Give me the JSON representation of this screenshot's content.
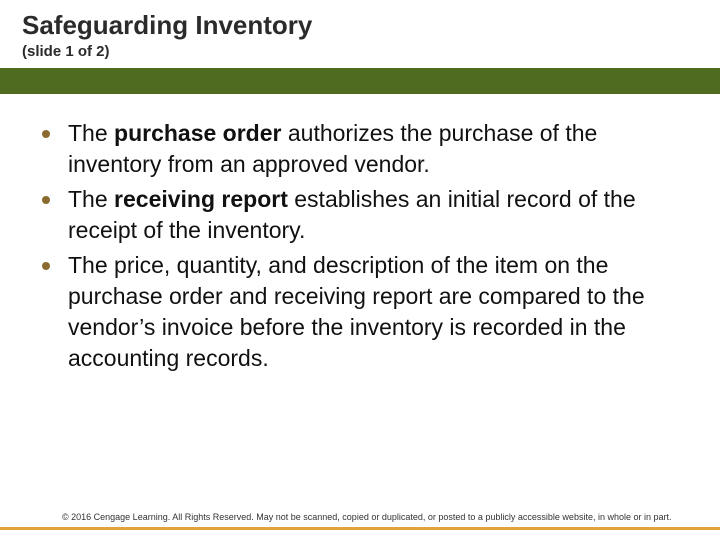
{
  "colors": {
    "green_bar": "#4e6b1f",
    "accent_line": "#e2a33a",
    "bullet": "#8b6a2f",
    "bg": "#ffffff",
    "text": "#111111"
  },
  "header": {
    "title": "Safeguarding Inventory",
    "subtitle": "(slide 1 of 2)"
  },
  "bullets": [
    {
      "pre": "The ",
      "bold": "purchase order",
      "post": " authorizes the purchase of the inventory from an approved vendor."
    },
    {
      "pre": "The ",
      "bold": "receiving report",
      "post": " establishes an initial record of the receipt of the inventory."
    },
    {
      "pre": "",
      "bold": "",
      "post": "The price, quantity, and description of the item on the purchase order and receiving report are compared to the vendor’s invoice before the inventory is recorded in the accounting records."
    }
  ],
  "copyright": "© 2016 Cengage Learning. All Rights Reserved. May not be scanned, copied or duplicated, or posted to a publicly accessible website, in whole or in part."
}
